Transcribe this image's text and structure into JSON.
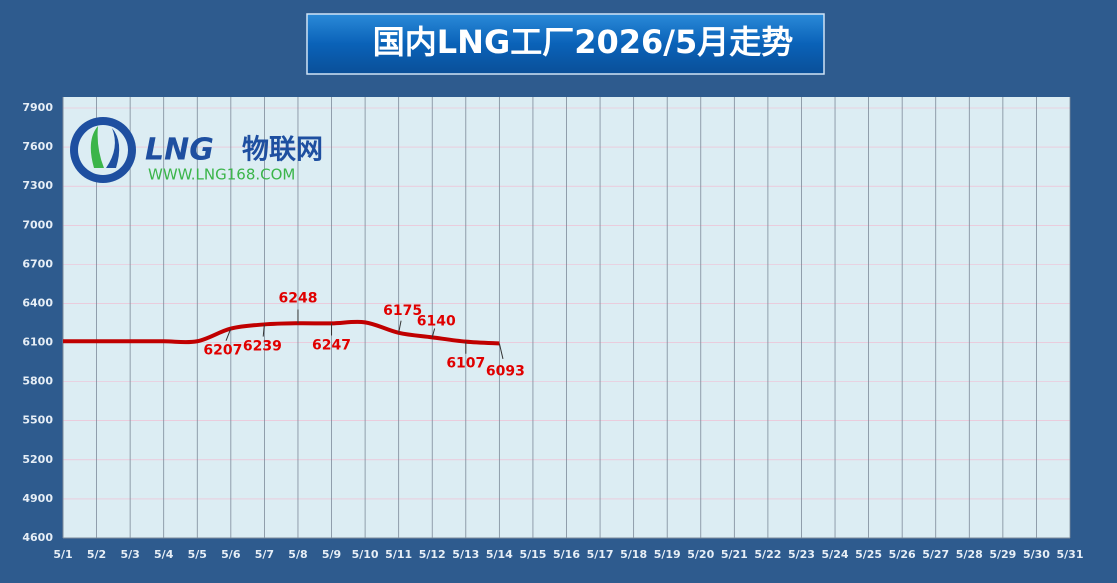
{
  "chart_data": {
    "type": "line",
    "title": "国内LNG工厂2026/5月走势",
    "logo_name": "LNG",
    "logo_suffix": "物联网",
    "logo_url": "WWW.LNG168.COM",
    "categories": [
      "5/1",
      "5/2",
      "5/3",
      "5/4",
      "5/5",
      "5/6",
      "5/7",
      "5/8",
      "5/9",
      "5/10",
      "5/11",
      "5/12",
      "5/13",
      "5/14",
      "5/15",
      "5/16",
      "5/17",
      "5/18",
      "5/19",
      "5/20",
      "5/21",
      "5/22",
      "5/23",
      "5/24",
      "5/25",
      "5/26",
      "5/27",
      "5/28",
      "5/29",
      "5/30",
      "5/31"
    ],
    "series": [
      {
        "color": "#c00000",
        "values": [
          6110,
          6110,
          6110,
          6110,
          6110,
          6207,
          6239,
          6248,
          6247,
          6255,
          6175,
          6140,
          6107,
          6093,
          null,
          null,
          null,
          null,
          null,
          null,
          null,
          null,
          null,
          null,
          null,
          null,
          null,
          null,
          null,
          null,
          null
        ],
        "value_labels": [
          null,
          null,
          null,
          null,
          null,
          "6207",
          "6239",
          "6248",
          "6247",
          null,
          "6175",
          "6140",
          "6107",
          "6093",
          null,
          null,
          null,
          null,
          null,
          null,
          null,
          null,
          null,
          null,
          null,
          null,
          null,
          null,
          null,
          null,
          null
        ]
      }
    ],
    "ylim": [
      4600,
      7900
    ],
    "yticks": [
      4600,
      4900,
      5200,
      5500,
      5800,
      6100,
      6400,
      6700,
      7000,
      7300,
      7600,
      7900
    ],
    "grid": true
  }
}
